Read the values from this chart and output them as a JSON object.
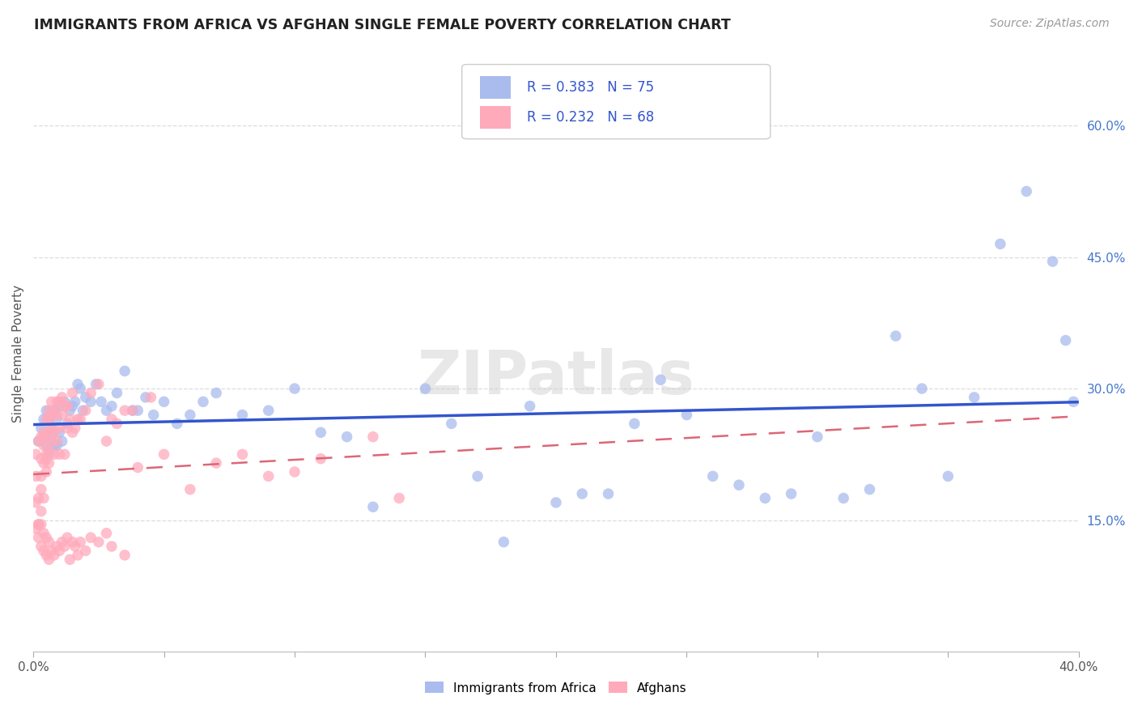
{
  "title": "IMMIGRANTS FROM AFRICA VS AFGHAN SINGLE FEMALE POVERTY CORRELATION CHART",
  "source": "Source: ZipAtlas.com",
  "ylabel": "Single Female Poverty",
  "xlim": [
    0.0,
    0.4
  ],
  "ylim": [
    0.0,
    0.68
  ],
  "right_ytick_vals": [
    0.15,
    0.3,
    0.45,
    0.6
  ],
  "right_ytick_labels": [
    "15.0%",
    "30.0%",
    "45.0%",
    "60.0%"
  ],
  "xtick_vals": [
    0.0,
    0.05,
    0.1,
    0.15,
    0.2,
    0.25,
    0.3,
    0.35,
    0.4
  ],
  "blue_scatter_color": "#aabbee",
  "pink_scatter_color": "#ffaabb",
  "blue_line_color": "#3355cc",
  "pink_line_color": "#dd6677",
  "watermark": "ZIPatlas",
  "legend_r1": "R = 0.383   N = 75",
  "legend_r2": "R = 0.232   N = 68",
  "africa_x": [
    0.002,
    0.003,
    0.004,
    0.004,
    0.005,
    0.005,
    0.006,
    0.006,
    0.007,
    0.007,
    0.008,
    0.008,
    0.009,
    0.009,
    0.01,
    0.01,
    0.011,
    0.012,
    0.013,
    0.014,
    0.015,
    0.016,
    0.017,
    0.018,
    0.019,
    0.02,
    0.022,
    0.024,
    0.026,
    0.028,
    0.03,
    0.032,
    0.035,
    0.038,
    0.04,
    0.043,
    0.046,
    0.05,
    0.055,
    0.06,
    0.065,
    0.07,
    0.08,
    0.09,
    0.1,
    0.11,
    0.12,
    0.13,
    0.15,
    0.16,
    0.17,
    0.18,
    0.19,
    0.2,
    0.21,
    0.22,
    0.23,
    0.24,
    0.25,
    0.26,
    0.27,
    0.28,
    0.29,
    0.3,
    0.31,
    0.32,
    0.33,
    0.34,
    0.35,
    0.36,
    0.37,
    0.38,
    0.39,
    0.395,
    0.398
  ],
  "africa_y": [
    0.24,
    0.255,
    0.245,
    0.265,
    0.235,
    0.275,
    0.225,
    0.265,
    0.245,
    0.255,
    0.235,
    0.275,
    0.235,
    0.265,
    0.25,
    0.28,
    0.24,
    0.285,
    0.26,
    0.275,
    0.28,
    0.285,
    0.305,
    0.3,
    0.275,
    0.29,
    0.285,
    0.305,
    0.285,
    0.275,
    0.28,
    0.295,
    0.32,
    0.275,
    0.275,
    0.29,
    0.27,
    0.285,
    0.26,
    0.27,
    0.285,
    0.295,
    0.27,
    0.275,
    0.3,
    0.25,
    0.245,
    0.165,
    0.3,
    0.26,
    0.2,
    0.125,
    0.28,
    0.17,
    0.18,
    0.18,
    0.26,
    0.31,
    0.27,
    0.2,
    0.19,
    0.175,
    0.18,
    0.245,
    0.175,
    0.185,
    0.36,
    0.3,
    0.2,
    0.29,
    0.465,
    0.525,
    0.445,
    0.355,
    0.285
  ],
  "afghan_x": [
    0.001,
    0.001,
    0.002,
    0.002,
    0.002,
    0.003,
    0.003,
    0.003,
    0.003,
    0.003,
    0.004,
    0.004,
    0.004,
    0.004,
    0.005,
    0.005,
    0.005,
    0.005,
    0.005,
    0.006,
    0.006,
    0.006,
    0.006,
    0.006,
    0.007,
    0.007,
    0.007,
    0.007,
    0.008,
    0.008,
    0.008,
    0.009,
    0.009,
    0.009,
    0.01,
    0.01,
    0.01,
    0.011,
    0.011,
    0.012,
    0.012,
    0.013,
    0.013,
    0.014,
    0.015,
    0.015,
    0.016,
    0.017,
    0.018,
    0.02,
    0.022,
    0.025,
    0.028,
    0.03,
    0.032,
    0.035,
    0.038,
    0.04,
    0.045,
    0.05,
    0.06,
    0.07,
    0.08,
    0.09,
    0.1,
    0.11,
    0.13,
    0.14
  ],
  "afghan_y": [
    0.225,
    0.2,
    0.145,
    0.175,
    0.24,
    0.185,
    0.16,
    0.245,
    0.22,
    0.2,
    0.215,
    0.235,
    0.25,
    0.175,
    0.225,
    0.205,
    0.245,
    0.265,
    0.22,
    0.25,
    0.275,
    0.23,
    0.265,
    0.215,
    0.255,
    0.27,
    0.285,
    0.24,
    0.25,
    0.275,
    0.225,
    0.285,
    0.24,
    0.27,
    0.255,
    0.285,
    0.225,
    0.27,
    0.29,
    0.28,
    0.225,
    0.255,
    0.28,
    0.265,
    0.25,
    0.295,
    0.255,
    0.265,
    0.265,
    0.275,
    0.295,
    0.305,
    0.24,
    0.265,
    0.26,
    0.275,
    0.275,
    0.21,
    0.29,
    0.225,
    0.185,
    0.215,
    0.225,
    0.2,
    0.205,
    0.22,
    0.245,
    0.175
  ],
  "afghan_low_x": [
    0.001,
    0.002,
    0.002,
    0.003,
    0.003,
    0.004,
    0.004,
    0.005,
    0.005,
    0.006,
    0.006,
    0.007,
    0.007,
    0.008,
    0.009,
    0.01,
    0.011,
    0.012,
    0.013,
    0.014,
    0.015,
    0.016,
    0.017,
    0.018,
    0.019,
    0.02,
    0.022,
    0.025,
    0.028,
    0.03
  ],
  "afghan_low_y": [
    0.175,
    0.14,
    0.13,
    0.135,
    0.15,
    0.125,
    0.145,
    0.13,
    0.14,
    0.125,
    0.135,
    0.115,
    0.125,
    0.11,
    0.12,
    0.115,
    0.13,
    0.12,
    0.135,
    0.105,
    0.13,
    0.125,
    0.11,
    0.13,
    0.12,
    0.145,
    0.135,
    0.14,
    0.13,
    0.125
  ]
}
